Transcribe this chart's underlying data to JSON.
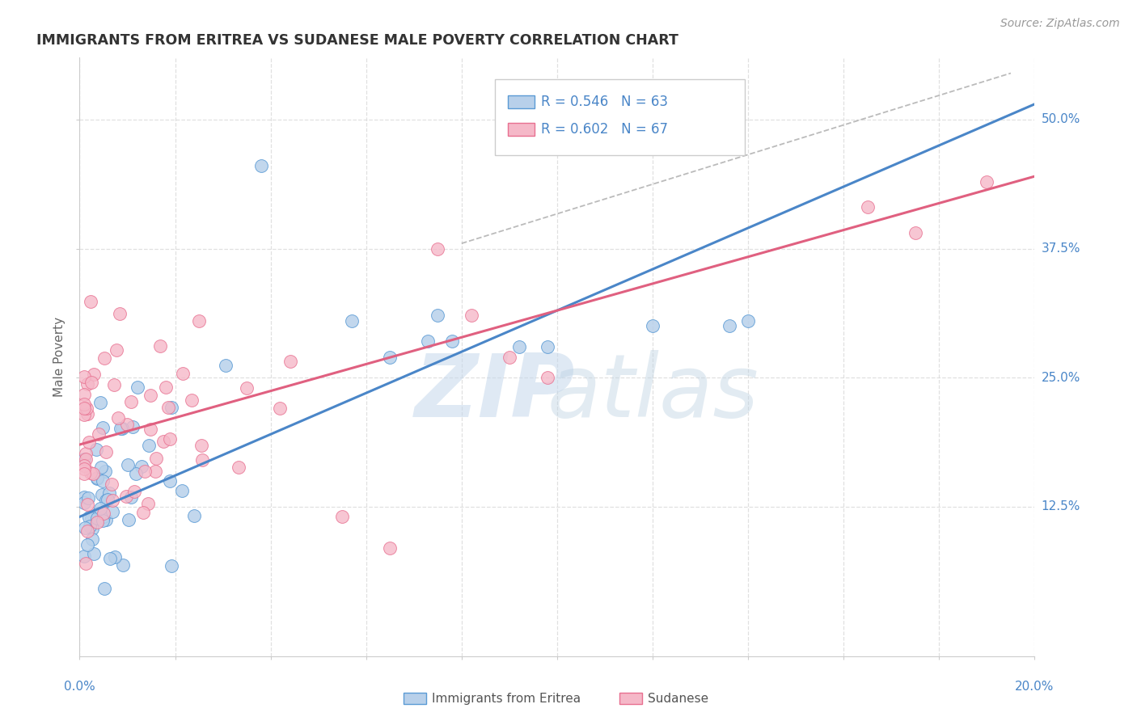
{
  "title": "IMMIGRANTS FROM ERITREA VS SUDANESE MALE POVERTY CORRELATION CHART",
  "source_text": "Source: ZipAtlas.com",
  "ylabel": "Male Poverty",
  "yticks": [
    "12.5%",
    "25.0%",
    "37.5%",
    "50.0%"
  ],
  "ytick_vals": [
    0.125,
    0.25,
    0.375,
    0.5
  ],
  "xrange": [
    0.0,
    0.2
  ],
  "yrange": [
    -0.02,
    0.56
  ],
  "legend_r1": "R = 0.546",
  "legend_n1": "N = 63",
  "legend_r2": "R = 0.602",
  "legend_n2": "N = 67",
  "color_blue_fill": "#b8d0ea",
  "color_pink_fill": "#f5b8c8",
  "color_blue_edge": "#5b9bd5",
  "color_pink_edge": "#e87090",
  "color_blue_line": "#4a86c8",
  "color_pink_line": "#e06080",
  "blue_line_x0": 0.0,
  "blue_line_y0": 0.115,
  "blue_line_x1": 0.195,
  "blue_line_y1": 0.505,
  "pink_line_x0": 0.0,
  "pink_line_y0": 0.185,
  "pink_line_x1": 0.2,
  "pink_line_y1": 0.445,
  "dash_line_x0": 0.08,
  "dash_line_y0": 0.38,
  "dash_line_x1": 0.195,
  "dash_line_y1": 0.545
}
